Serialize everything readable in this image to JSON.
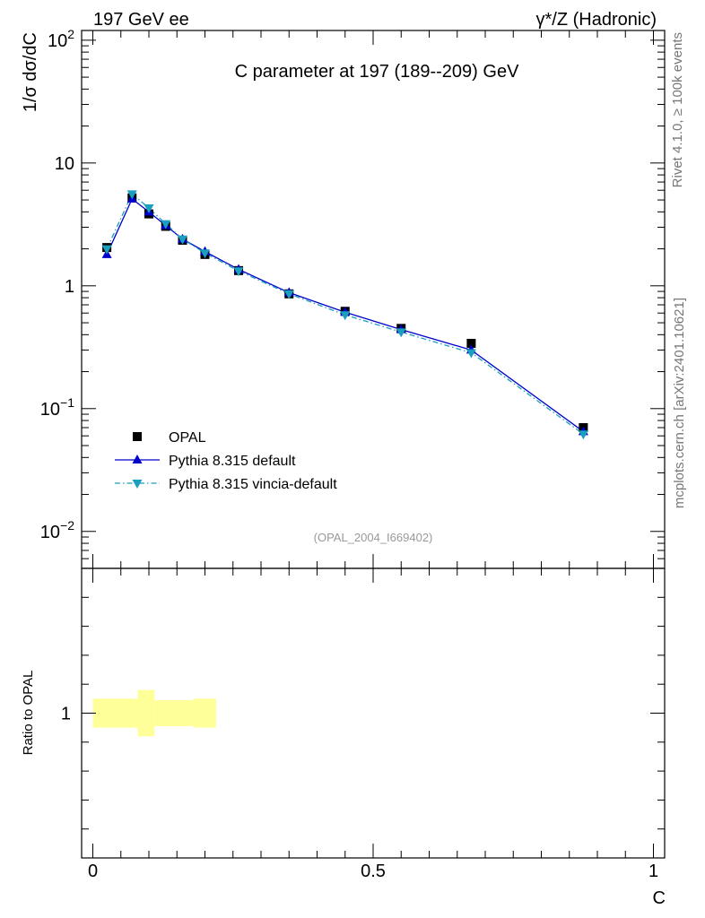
{
  "header": {
    "left": "197 GeV ee",
    "right": "γ*/Z (Hadronic)"
  },
  "side": {
    "top": "Rivet 4.1.0, ≥ 100k events",
    "bottom": "mcplots.cern.ch [arXiv:2401.10621]"
  },
  "chart_data": [
    {
      "type": "scatter",
      "title": "C parameter at 197 (189--209) GeV",
      "subtitle": "(OPAL_2004_I669402)",
      "ylabel": "1/σ dσ/dC",
      "xlabel": "C",
      "xlim": [
        -0.02,
        1.02
      ],
      "ylim": [
        0.005,
        120
      ],
      "yscale": "log",
      "y_ticks": [
        {
          "v": 0.01,
          "m": "10",
          "e": "−2"
        },
        {
          "v": 0.1,
          "m": "10",
          "e": "−1"
        },
        {
          "v": 1,
          "m": "1",
          "e": ""
        },
        {
          "v": 10,
          "m": "10",
          "e": ""
        },
        {
          "v": 100,
          "m": "10",
          "e": "2"
        }
      ],
      "legend_position": "lower-left",
      "series": [
        {
          "name": "OPAL",
          "color": "#000000",
          "marker": "square",
          "x": [
            0.025,
            0.07,
            0.1,
            0.13,
            0.16,
            0.2,
            0.26,
            0.35,
            0.45,
            0.55,
            0.675,
            0.875
          ],
          "y": [
            2.05,
            5.2,
            3.85,
            3.05,
            2.35,
            1.8,
            1.33,
            0.86,
            0.62,
            0.45,
            0.34,
            0.07
          ]
        },
        {
          "name": "Pythia 8.315 default",
          "color": "#0000cc",
          "marker": "triangle-up",
          "line": "solid",
          "x": [
            0.025,
            0.07,
            0.1,
            0.13,
            0.16,
            0.2,
            0.26,
            0.35,
            0.45,
            0.55,
            0.675,
            0.875
          ],
          "y": [
            1.8,
            5.1,
            4.0,
            3.1,
            2.4,
            1.9,
            1.36,
            0.88,
            0.61,
            0.44,
            0.3,
            0.065
          ]
        },
        {
          "name": "Pythia 8.315 vincia-default",
          "color": "#1a9fbf",
          "marker": "triangle-down",
          "line": "dashdot",
          "x": [
            0.025,
            0.07,
            0.1,
            0.13,
            0.16,
            0.2,
            0.26,
            0.35,
            0.45,
            0.55,
            0.675,
            0.875
          ],
          "y": [
            2.0,
            5.6,
            4.3,
            3.2,
            2.4,
            1.85,
            1.32,
            0.86,
            0.58,
            0.42,
            0.285,
            0.062
          ]
        }
      ]
    },
    {
      "type": "area",
      "ylabel": "Ratio to OPAL",
      "xlabel": "C",
      "xlim": [
        -0.02,
        1.02
      ],
      "ylim": [
        0.5,
        1.5
      ],
      "x_ticks": [
        "0",
        "0.5",
        "1"
      ],
      "y_ticks": [
        "1"
      ],
      "band": {
        "color": "#ffff99",
        "segments": [
          {
            "x0": 0.0,
            "x1": 0.08,
            "lo": 0.95,
            "hi": 1.05
          },
          {
            "x0": 0.08,
            "x1": 0.11,
            "lo": 0.92,
            "hi": 1.08
          },
          {
            "x0": 0.11,
            "x1": 0.18,
            "lo": 0.955,
            "hi": 1.045
          },
          {
            "x0": 0.18,
            "x1": 0.22,
            "lo": 0.95,
            "hi": 1.05
          }
        ]
      }
    }
  ]
}
